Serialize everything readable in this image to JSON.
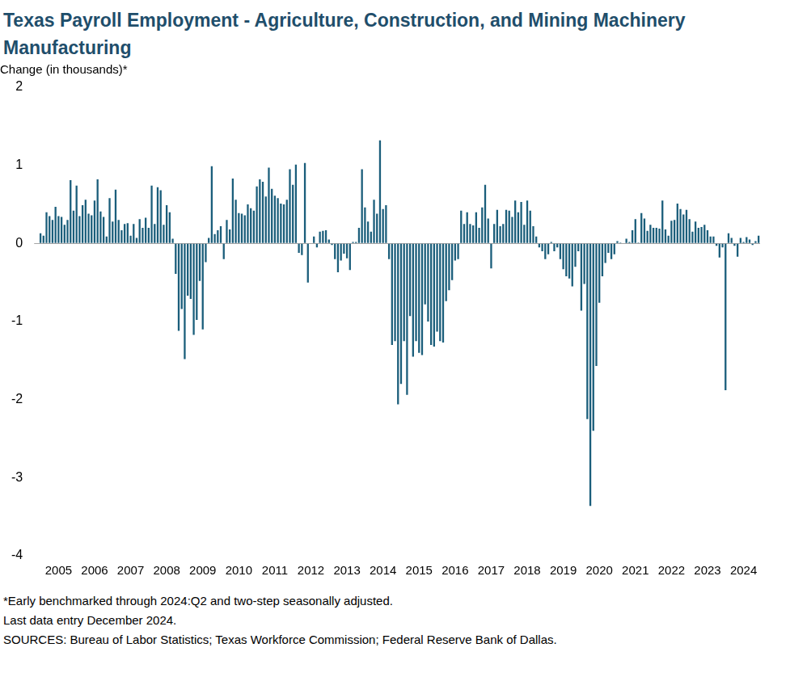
{
  "chart_data": {
    "type": "bar",
    "title": "Texas Payroll Employment - Agriculture, Construction, and Mining Machinery Manufacturing",
    "y_label": "Change (in thousands)*",
    "notes": [
      "*Early benchmarked through 2024:Q2 and two-step seasonally adjusted.",
      "Last data entry December 2024.",
      "SOURCES: Bureau of Labor Statistics; Texas Workforce Commission; Federal Reserve Bank of Dallas."
    ],
    "years": [
      "2005",
      "2006",
      "2007",
      "2008",
      "2009",
      "2010",
      "2011",
      "2012",
      "2013",
      "2014",
      "2015",
      "2016",
      "2017",
      "2018",
      "2019",
      "2020",
      "2021",
      "2022",
      "2023",
      "2024"
    ],
    "values": [
      0.13,
      0.1,
      0.4,
      0.35,
      0.3,
      0.47,
      0.35,
      0.34,
      0.24,
      0.3,
      0.81,
      0.42,
      0.74,
      0.35,
      0.49,
      0.56,
      0.38,
      0.36,
      0.55,
      0.82,
      0.41,
      0.34,
      0.09,
      0.58,
      0.28,
      0.69,
      0.3,
      0.17,
      0.25,
      0.26,
      0.1,
      0.25,
      0.07,
      0.31,
      0.2,
      0.33,
      0.2,
      0.74,
      0.25,
      0.72,
      0.68,
      0.24,
      0.49,
      0.4,
      0.06,
      -0.39,
      -1.12,
      -0.84,
      -1.48,
      -0.67,
      -0.71,
      -1.17,
      -0.98,
      -0.48,
      -1.1,
      -0.24,
      0.07,
      0.99,
      0.12,
      0.17,
      0.22,
      -0.2,
      0.3,
      0.18,
      0.83,
      0.56,
      0.39,
      0.38,
      0.36,
      0.5,
      0.45,
      0.42,
      0.73,
      0.82,
      0.79,
      0.6,
      0.97,
      0.7,
      0.61,
      0.58,
      0.51,
      0.5,
      0.56,
      0.95,
      0.75,
      1.01,
      -0.12,
      -0.15,
      1.03,
      -0.5,
      0.0,
      0.09,
      -0.05,
      0.15,
      0.16,
      0.17,
      0.05,
      -0.02,
      -0.2,
      -0.37,
      -0.22,
      -0.13,
      -0.19,
      -0.34,
      0.02,
      0.02,
      0.2,
      0.95,
      0.46,
      0.28,
      0.15,
      0.56,
      0.38,
      1.32,
      0.44,
      0.49,
      -0.2,
      -1.3,
      -1.25,
      -2.06,
      -1.8,
      -1.25,
      -1.94,
      -0.93,
      -1.45,
      -1.25,
      -1.4,
      -1.43,
      -0.78,
      -1.0,
      -1.3,
      -1.32,
      -1.13,
      -1.25,
      -1.27,
      -0.74,
      -0.6,
      -0.47,
      -0.22,
      -0.2,
      0.42,
      0.25,
      0.4,
      0.25,
      0.23,
      0.4,
      0.2,
      0.46,
      0.75,
      0.32,
      -0.32,
      0.25,
      0.43,
      0.22,
      0.25,
      0.43,
      0.42,
      0.34,
      0.55,
      0.4,
      0.53,
      0.24,
      0.55,
      0.42,
      0.22,
      0.09,
      -0.05,
      -0.1,
      -0.2,
      -0.14,
      0.02,
      -0.1,
      -0.05,
      -0.2,
      -0.33,
      -0.42,
      -0.45,
      -0.55,
      -0.3,
      -0.1,
      -0.86,
      -0.52,
      -2.25,
      -3.36,
      -2.4,
      -1.57,
      -0.76,
      -0.42,
      -0.25,
      -0.12,
      -0.2,
      -0.14,
      0.03,
      0.01,
      0.0,
      0.06,
      0.02,
      0.17,
      0.31,
      0.01,
      0.39,
      0.32,
      0.16,
      0.24,
      0.2,
      0.2,
      0.19,
      0.55,
      0.18,
      0.1,
      0.29,
      0.3,
      0.51,
      0.44,
      0.37,
      0.43,
      0.31,
      0.15,
      0.28,
      0.2,
      0.21,
      0.24,
      0.17,
      0.09,
      0.09,
      -0.03,
      -0.18,
      -0.05,
      -1.88,
      0.13,
      0.07,
      -0.03,
      -0.17,
      0.07,
      0.02,
      0.08,
      0.05,
      -0.02,
      0.03,
      0.1
    ],
    "color": "#1b5e7b",
    "ylim": [
      -4,
      2
    ],
    "yticks": [
      -4,
      -3,
      -2,
      -1,
      0,
      1,
      2
    ],
    "grid": false
  }
}
